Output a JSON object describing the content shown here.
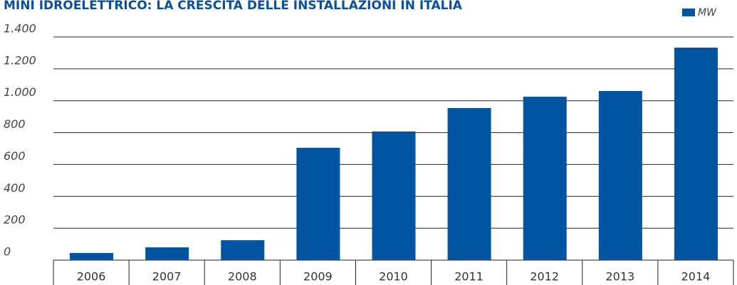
{
  "chart_data": {
    "type": "bar",
    "title": "MINI IDROELETTRICO: LA CRESCITA DELLE INSTALLAZIONI IN ITALIA",
    "categories": [
      "2006",
      "2007",
      "2008",
      "2009",
      "2010",
      "2011",
      "2012",
      "2013",
      "2014"
    ],
    "series": [
      {
        "name": "MW",
        "color": "#0054a0",
        "values": [
          45,
          80,
          125,
          705,
          807,
          954,
          1025,
          1061,
          1333
        ]
      }
    ],
    "ylim": [
      0,
      1400
    ],
    "yticks": [
      0,
      200,
      400,
      600,
      800,
      {
        "value": 1000,
        "label": "1.000"
      },
      {
        "value": 1200,
        "label": "1.200"
      },
      {
        "value": 1400,
        "label": "1.400"
      }
    ],
    "grid": true,
    "legend": "top-right"
  }
}
